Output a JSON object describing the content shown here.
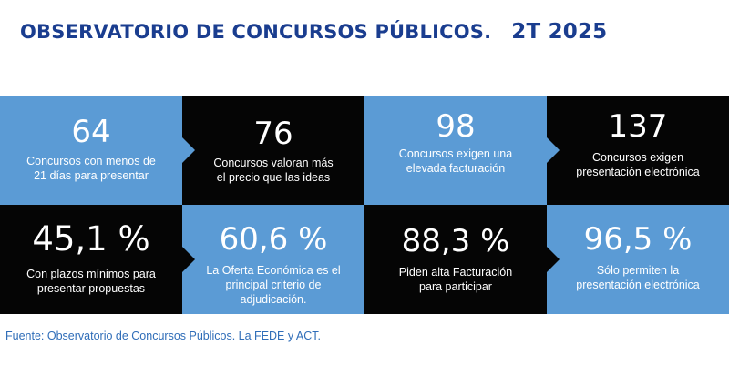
{
  "header": {
    "title": "OBSERVATORIO DE CONCURSOS PÚBLICOS.",
    "period": "2T 2025"
  },
  "stats": [
    {
      "value": "64",
      "line1": "Concursos con menos de",
      "line2": "21 días para presentar",
      "line3": ""
    },
    {
      "value": "76",
      "line1": "Concursos valoran más",
      "line2": "el precio que las ideas",
      "line3": ""
    },
    {
      "value": "98",
      "line1": "Concursos exigen una",
      "line2": "elevada facturación",
      "line3": ""
    },
    {
      "value": "137",
      "line1": "Concursos exigen",
      "line2": "presentación electrónica",
      "line3": ""
    },
    {
      "value": "45,1 %",
      "line1": "Con plazos mínimos para",
      "line2": "presentar propuestas",
      "line3": ""
    },
    {
      "value": "60,6 %",
      "line1": "La Oferta Económica es el",
      "line2": "principal criterio de",
      "line3": "adjudicación."
    },
    {
      "value": "88,3 %",
      "line1": "Piden alta Facturación",
      "line2": "para participar",
      "line3": ""
    },
    {
      "value": "96,5 %",
      "line1": "Sólo permiten la",
      "line2": "presentación electrónica",
      "line3": ""
    }
  ],
  "footer": {
    "source": "Fuente: Observatorio de Concursos Públicos. La FEDE y ACT."
  },
  "colors": {
    "title": "#1a3d8f",
    "blue": "#5b9bd5",
    "black": "#050505",
    "source": "#2f6db8"
  }
}
